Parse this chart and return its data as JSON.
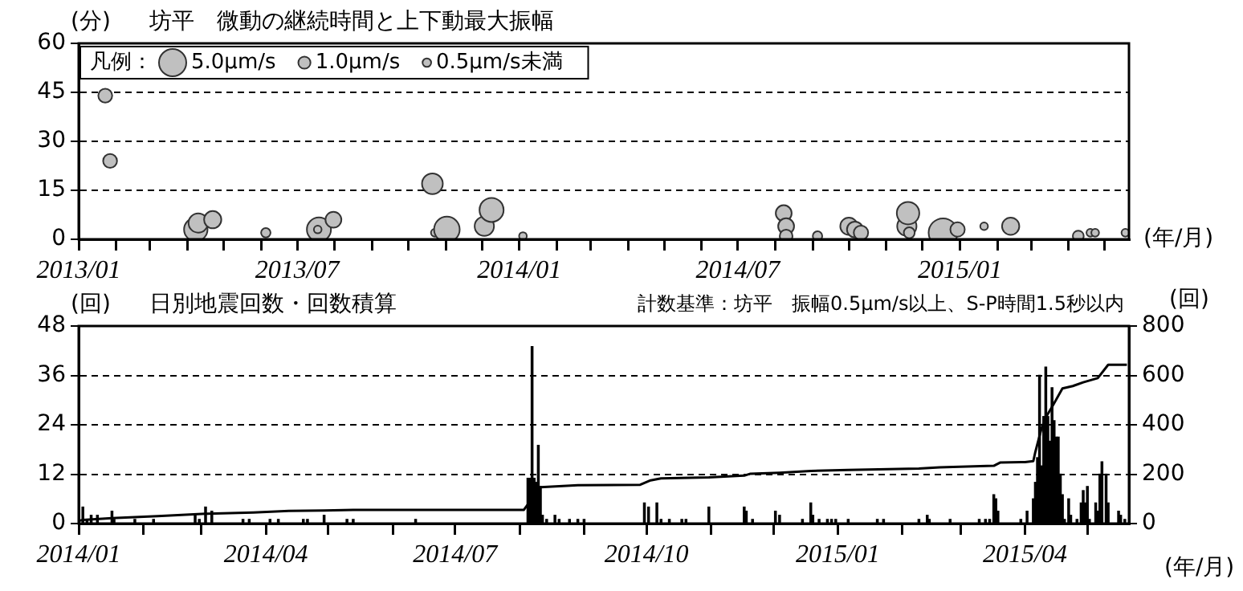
{
  "chart_data": [
    {
      "type": "bubble",
      "title": "坊平　微動の継続時間と上下動最大振幅",
      "ylabel": "(分)",
      "xlabel": "(年/月)",
      "color": "#c0c0c0",
      "legend_title": "凡例：",
      "grid": "y",
      "size_legend": [
        {
          "value": 5.0,
          "label": "5.0μm/s"
        },
        {
          "value": 1.0,
          "label": "1.0μm/s"
        },
        {
          "value": 0.5,
          "label": "0.5μm/s未満"
        }
      ],
      "x": [
        "2013-01-23",
        "2013-01-27",
        "2013-04-08",
        "2013-04-10",
        "2013-04-22",
        "2013-06-05",
        "2013-07-19",
        "2013-07-18",
        "2013-07-31",
        "2013-10-21",
        "2013-10-23",
        "2013-11-02",
        "2013-12-03",
        "2013-12-09",
        "2014-01-04",
        "2014-08-08",
        "2014-08-10",
        "2014-08-10",
        "2014-09-05",
        "2014-10-01",
        "2014-10-06",
        "2014-10-11",
        "2014-11-18",
        "2014-11-19",
        "2014-11-20",
        "2014-12-18",
        "2014-12-30",
        "2015-01-21",
        "2015-02-12",
        "2015-04-09",
        "2015-04-19",
        "2015-04-23",
        "2015-05-18"
      ],
      "values": [
        44,
        24,
        3,
        5,
        6,
        2,
        3,
        3,
        6,
        17,
        2,
        3,
        4,
        9,
        1,
        8,
        4,
        1,
        1,
        4,
        3,
        2,
        4,
        8,
        2,
        2,
        3,
        4,
        4,
        1,
        2,
        2,
        2
      ],
      "sizes": [
        1.3,
        1.3,
        3.7,
        2.5,
        2,
        0.6,
        3.9,
        0.4,
        1.7,
        2.9,
        0.4,
        4.4,
        2.5,
        3.9,
        0.4,
        1.7,
        1.7,
        1.1,
        0.6,
        2,
        1.7,
        1.4,
        2.5,
        3.4,
        0.8,
        5.6,
        1.4,
        0.4,
        2,
        0.8,
        0.4,
        0.4,
        0.4
      ],
      "xlim": [
        "2013-01-01",
        "2015-05-21"
      ],
      "xticks": [
        {
          "value": "2013-01-01",
          "label": "2013/01"
        },
        {
          "value": "2013-02-01",
          "label": null
        },
        {
          "value": "2013-03-01",
          "label": null
        },
        {
          "value": "2013-04-01",
          "label": null
        },
        {
          "value": "2013-05-01",
          "label": null
        },
        {
          "value": "2013-06-01",
          "label": null
        },
        {
          "value": "2013-07-01",
          "label": "2013/07"
        },
        {
          "value": "2013-08-01",
          "label": null
        },
        {
          "value": "2013-09-01",
          "label": null
        },
        {
          "value": "2013-10-01",
          "label": null
        },
        {
          "value": "2013-11-01",
          "label": null
        },
        {
          "value": "2013-12-01",
          "label": null
        },
        {
          "value": "2014-01-01",
          "label": "2014/01"
        },
        {
          "value": "2014-02-01",
          "label": null
        },
        {
          "value": "2014-03-01",
          "label": null
        },
        {
          "value": "2014-04-01",
          "label": null
        },
        {
          "value": "2014-05-01",
          "label": null
        },
        {
          "value": "2014-06-01",
          "label": null
        },
        {
          "value": "2014-07-01",
          "label": "2014/07"
        },
        {
          "value": "2014-08-01",
          "label": null
        },
        {
          "value": "2014-09-01",
          "label": null
        },
        {
          "value": "2014-10-01",
          "label": null
        },
        {
          "value": "2014-11-01",
          "label": null
        },
        {
          "value": "2014-12-01",
          "label": null
        },
        {
          "value": "2015-01-01",
          "label": "2015/01"
        },
        {
          "value": "2015-02-01",
          "label": null
        },
        {
          "value": "2015-03-01",
          "label": null
        },
        {
          "value": "2015-04-01",
          "label": null
        },
        {
          "value": "2015-05-01",
          "label": null
        }
      ],
      "ylim": [
        0,
        60
      ],
      "yticks": [
        0,
        15,
        30,
        45,
        60
      ]
    },
    {
      "type": "bar",
      "title": "日別地震回数・回数積算",
      "ylabel": "(回)",
      "y2label": "(回)",
      "xlabel": "(年/月)",
      "grid": "y",
      "marker": "none",
      "annotations": [
        "計数基準：坊平　振幅0.5μm/s以上、S-P時間1.5秒以内"
      ],
      "series": [
        {
          "color": "#000000",
          "x": [
            "2014-01-03",
            "2014-01-05",
            "2014-01-07",
            "2014-01-10",
            "2014-01-17",
            "2014-01-18",
            "2014-01-28",
            "2014-02-06",
            "2014-02-26",
            "2014-02-28",
            "2014-03-03",
            "2014-03-06",
            "2014-03-21",
            "2014-03-24",
            "2014-04-03",
            "2014-04-07",
            "2014-04-19",
            "2014-04-21",
            "2014-04-29",
            "2014-05-10",
            "2014-05-13",
            "2014-06-12",
            "2014-08-05",
            "2014-08-06",
            "2014-08-07",
            "2014-08-08",
            "2014-08-09",
            "2014-08-10",
            "2014-08-11",
            "2014-08-12",
            "2014-08-14",
            "2014-08-18",
            "2014-08-20",
            "2014-08-25",
            "2014-08-29",
            "2014-09-01",
            "2014-09-30",
            "2014-10-02",
            "2014-10-06",
            "2014-10-08",
            "2014-10-12",
            "2014-10-18",
            "2014-10-20",
            "2014-10-31",
            "2014-11-17",
            "2014-11-18",
            "2014-11-21",
            "2014-12-02",
            "2014-12-04",
            "2014-12-15",
            "2014-12-19",
            "2014-12-20",
            "2014-12-23",
            "2014-12-27",
            "2014-12-29",
            "2014-12-31",
            "2015-01-06",
            "2015-01-20",
            "2015-01-23",
            "2015-02-09",
            "2015-02-13",
            "2015-02-14",
            "2015-02-24",
            "2015-03-10",
            "2015-03-13",
            "2015-03-15",
            "2015-03-17",
            "2015-03-18",
            "2015-03-19",
            "2015-03-30",
            "2015-04-02",
            "2015-04-05",
            "2015-04-06",
            "2015-04-07",
            "2015-04-08",
            "2015-04-09",
            "2015-04-10",
            "2015-04-11",
            "2015-04-12",
            "2015-04-13",
            "2015-04-14",
            "2015-04-15",
            "2015-04-16",
            "2015-04-17",
            "2015-04-18",
            "2015-04-19",
            "2015-04-20",
            "2015-04-22",
            "2015-04-23",
            "2015-04-26",
            "2015-04-28",
            "2015-04-29",
            "2015-04-30",
            "2015-05-01",
            "2015-05-02",
            "2015-05-05",
            "2015-05-06",
            "2015-05-07",
            "2015-05-08",
            "2015-05-10",
            "2015-05-11",
            "2015-05-16",
            "2015-05-17",
            "2015-05-19"
          ],
          "values": [
            4,
            1,
            2,
            2,
            3,
            1,
            1,
            1,
            2,
            1,
            4,
            3,
            1,
            1,
            1,
            1,
            1,
            1,
            2,
            1,
            1,
            1,
            11,
            11,
            43,
            11,
            10,
            19,
            9,
            2,
            1,
            2,
            1,
            1,
            1,
            1,
            5,
            4,
            5,
            1,
            1,
            1,
            1,
            4,
            4,
            3,
            1,
            3,
            2,
            1,
            5,
            2,
            1,
            1,
            1,
            1,
            1,
            1,
            1,
            1,
            2,
            1,
            1,
            1,
            1,
            1,
            7,
            6,
            3,
            1,
            3,
            6,
            10,
            16,
            36,
            14,
            26,
            38,
            26,
            20,
            33,
            25,
            21,
            21,
            12,
            7,
            1,
            6,
            2,
            1,
            5,
            8,
            5,
            9,
            1,
            5,
            3,
            12,
            15,
            12,
            5,
            3,
            2,
            1
          ]
        },
        {
          "type": "line",
          "axis": "y2",
          "color": "#000000",
          "x": [
            "2014-01-01",
            "2014-01-03",
            "2014-01-17",
            "2014-02-08",
            "2014-03-04",
            "2014-03-26",
            "2014-04-12",
            "2014-04-29",
            "2014-05-13",
            "2014-08-03",
            "2014-08-06",
            "2014-08-08",
            "2014-08-11",
            "2014-08-29",
            "2014-09-28",
            "2014-10-03",
            "2014-10-08",
            "2014-10-31",
            "2014-11-17",
            "2014-11-20",
            "2014-12-04",
            "2014-12-19",
            "2015-01-06",
            "2015-02-09",
            "2015-02-19",
            "2015-03-17",
            "2015-03-20",
            "2015-04-01",
            "2015-04-05",
            "2015-04-06",
            "2015-04-09",
            "2015-04-11",
            "2015-04-14",
            "2015-04-19",
            "2015-04-24",
            "2015-04-29",
            "2015-05-06",
            "2015-05-11",
            "2015-05-20"
          ],
          "values": [
            10,
            15,
            22,
            30,
            40,
            45,
            51,
            53,
            55,
            55,
            90,
            120,
            147,
            155,
            157,
            175,
            183,
            187,
            194,
            202,
            206,
            213,
            217,
            223,
            228,
            234,
            247,
            249,
            253,
            291,
            387,
            430,
            472,
            547,
            557,
            572,
            589,
            643,
            643
          ]
        }
      ],
      "xlim": [
        "2014-01-01",
        "2015-05-21"
      ],
      "xticks": [
        {
          "value": "2014-01-01",
          "label": "2014/01"
        },
        {
          "value": "2014-02-01",
          "label": null
        },
        {
          "value": "2014-03-01",
          "label": null
        },
        {
          "value": "2014-04-01",
          "label": "2014/04"
        },
        {
          "value": "2014-05-01",
          "label": null
        },
        {
          "value": "2014-06-01",
          "label": null
        },
        {
          "value": "2014-07-01",
          "label": "2014/07"
        },
        {
          "value": "2014-08-01",
          "label": null
        },
        {
          "value": "2014-09-01",
          "label": null
        },
        {
          "value": "2014-10-01",
          "label": "2014/10"
        },
        {
          "value": "2014-11-01",
          "label": null
        },
        {
          "value": "2014-12-01",
          "label": null
        },
        {
          "value": "2015-01-01",
          "label": "2015/01"
        },
        {
          "value": "2015-02-01",
          "label": null
        },
        {
          "value": "2015-03-01",
          "label": null
        },
        {
          "value": "2015-04-01",
          "label": "2015/04"
        },
        {
          "value": "2015-05-01",
          "label": null
        }
      ],
      "ylim": [
        0,
        48
      ],
      "yticks": [
        0,
        12,
        24,
        36,
        48
      ],
      "y2lim": [
        0,
        800
      ],
      "y2ticks": [
        0,
        200,
        400,
        600,
        800
      ]
    }
  ]
}
